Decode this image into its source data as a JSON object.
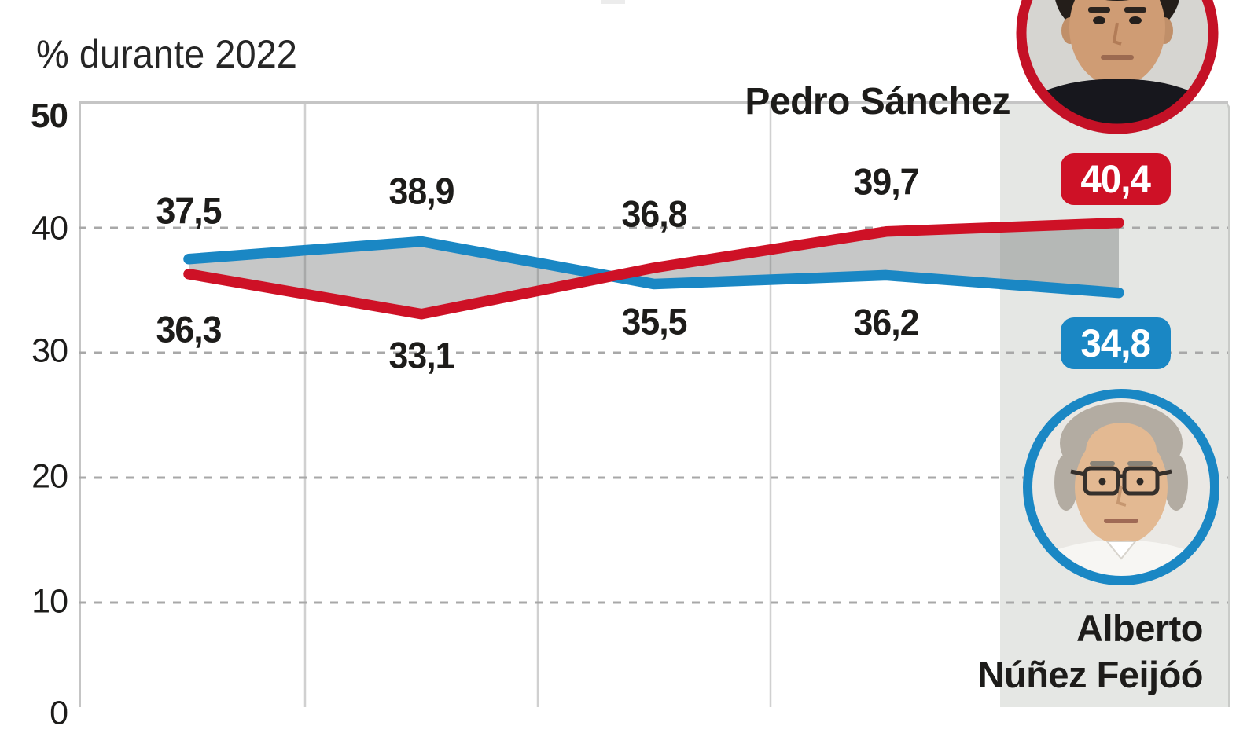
{
  "chart_data": {
    "type": "line",
    "title": "",
    "subtitle": "% durante 2022",
    "categories": [
      "",
      "",
      "",
      "",
      ""
    ],
    "series": [
      {
        "name": "Pedro Sánchez",
        "color": "#ce1126",
        "values": [
          36.3,
          33.1,
          36.8,
          39.7,
          40.4
        ],
        "point_labels": [
          "36,3",
          "33,1",
          "36,8",
          "39,7"
        ],
        "badge_label": "40,4"
      },
      {
        "name": "Alberto Núñez Feijóó",
        "color": "#1a87c4",
        "values": [
          37.5,
          38.9,
          35.5,
          36.2,
          34.8
        ],
        "point_labels": [
          "37,5",
          "38,9",
          "35,5",
          "36,2"
        ],
        "badge_label": "34,8"
      }
    ],
    "y_ticks": [
      "50",
      "40",
      "30",
      "20",
      "10",
      "0"
    ],
    "ylim": [
      0,
      50
    ],
    "grid": {
      "horizontal_dashed_at": [
        40,
        30,
        20,
        10
      ],
      "vertical_solid_lines": 3,
      "last_column_highlighted": true
    },
    "legend_position": "inline-annotations-right"
  },
  "annotations": {
    "sanchez_name": "Pedro Sánchez",
    "feijoo_name_line1": "Alberto",
    "feijoo_name_line2": "Núñez Feijóó"
  },
  "colors": {
    "red": "#ce1126",
    "blue": "#1a87c4",
    "highlight_band": "#e5e7e4",
    "between_lines_fill": "rgba(100,102,104,0.37)",
    "dashed_grid": "#a8a8a8",
    "solid_grid": "#d0d0d0",
    "frame": "#c5c5c5"
  }
}
